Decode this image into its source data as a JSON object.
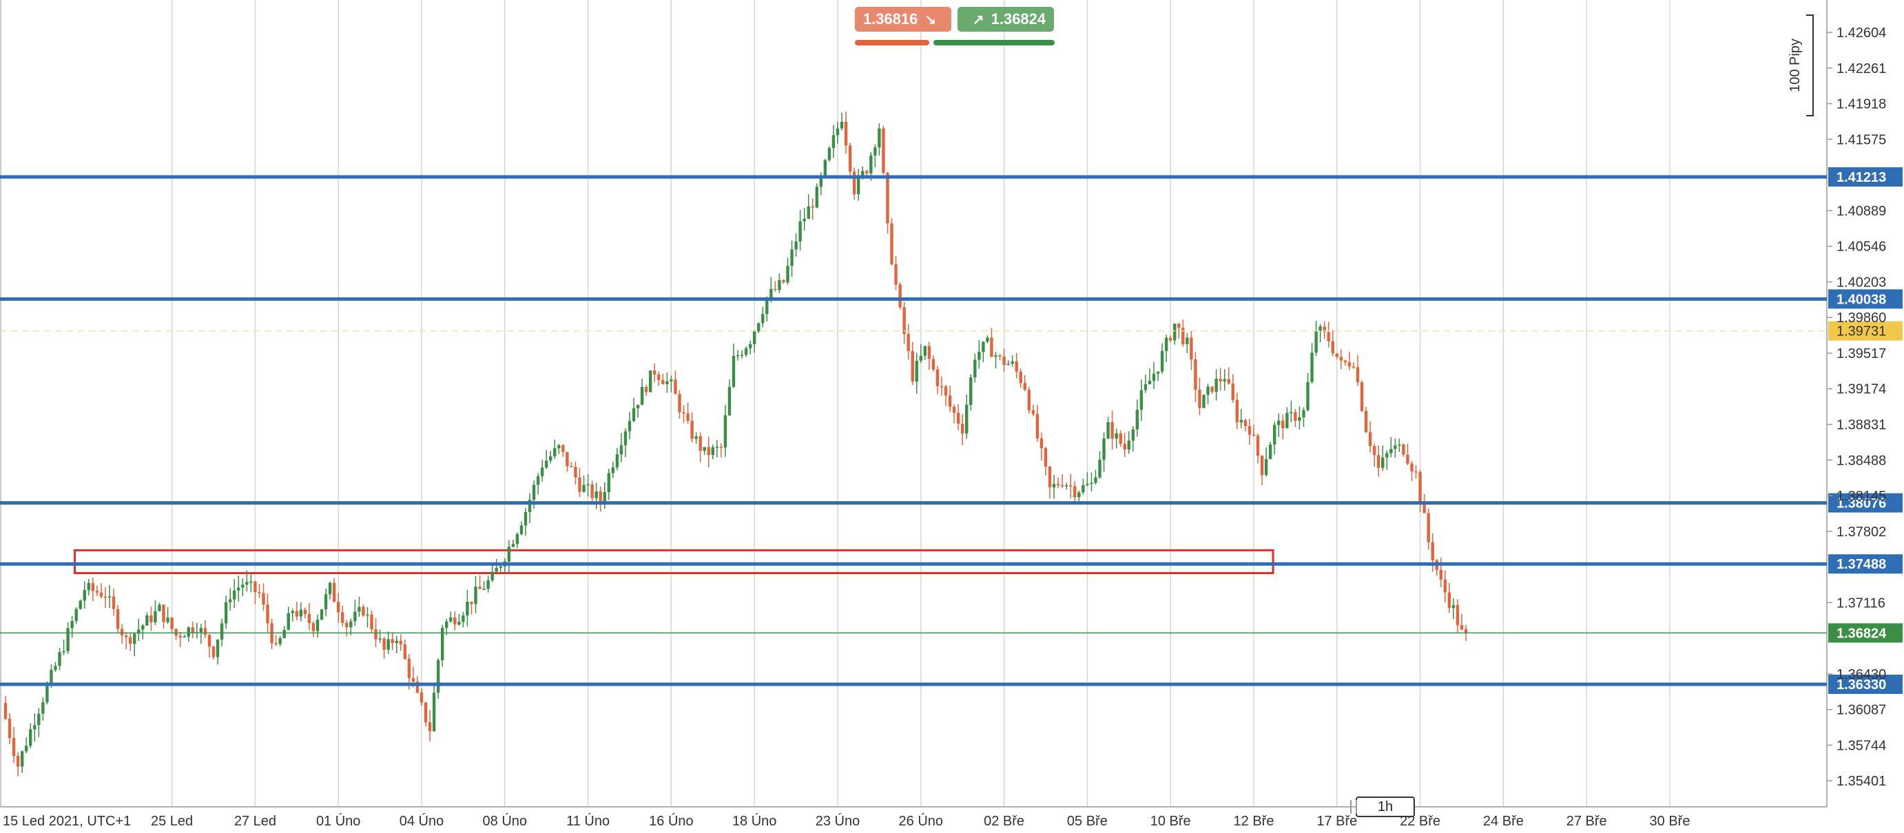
{
  "trade_panel": {
    "sell_price": "1.36816",
    "buy_price": "1.36824",
    "sell_color": "#e8886d",
    "buy_color": "#6aaa6e"
  },
  "timeframe": "1h",
  "colors": {
    "level": "#2f6db5",
    "up": "#3a8e46",
    "down": "#e0653c",
    "zone": "#d8312b",
    "current": "#3a8e46",
    "bid_tag": "#f0c94a"
  },
  "chart_data": {
    "type": "candlestick",
    "title": "",
    "xlabel": "",
    "ylabel": "",
    "ylim": [
      1.3515,
      1.429
    ],
    "y_ticks": [
      "1.35401",
      "1.35744",
      "1.36087",
      "1.36430",
      "1.37116",
      "1.37802",
      "1.38145",
      "1.38488",
      "1.38831",
      "1.39174",
      "1.39517",
      "1.39860",
      "1.40203",
      "1.40546",
      "1.40889",
      "1.41575",
      "1.41918",
      "1.42261",
      "1.42604"
    ],
    "x_labels": [
      {
        "label": "15 Led 2021, UTC+1",
        "idx": 0
      },
      {
        "label": "25 Led",
        "idx": 40
      },
      {
        "label": "27 Led",
        "idx": 60
      },
      {
        "label": "01 Úno",
        "idx": 80
      },
      {
        "label": "04 Úno",
        "idx": 100
      },
      {
        "label": "08 Úno",
        "idx": 120
      },
      {
        "label": "11 Úno",
        "idx": 140
      },
      {
        "label": "16 Úno",
        "idx": 160
      },
      {
        "label": "18 Úno",
        "idx": 180
      },
      {
        "label": "23 Úno",
        "idx": 200
      },
      {
        "label": "26 Úno",
        "idx": 220
      },
      {
        "label": "02 Bře",
        "idx": 240
      },
      {
        "label": "05 Bře",
        "idx": 260
      },
      {
        "label": "10 Bře",
        "idx": 280
      },
      {
        "label": "12 Bře",
        "idx": 300
      },
      {
        "label": "17 Bře",
        "idx": 320
      },
      {
        "label": "22 Bře",
        "idx": 340
      },
      {
        "label": "24 Bře",
        "idx": 360
      },
      {
        "label": "27 Bře",
        "idx": 380
      },
      {
        "label": "30 Bře",
        "idx": 400
      }
    ],
    "horizontal_levels": [
      "1.41213",
      "1.40038",
      "1.38076",
      "1.37488",
      "1.36330"
    ],
    "bid_price_tag": "1.39731",
    "current_price_tag": "1.36824",
    "range_marker_label": "100 Pipy",
    "zone": {
      "from_idx": 15,
      "to_idx": 303,
      "top": 1.3762,
      "bottom": 1.374
    },
    "anchors": [
      [
        0,
        1.3615
      ],
      [
        4,
        1.3555
      ],
      [
        8,
        1.36
      ],
      [
        14,
        1.366
      ],
      [
        20,
        1.3725
      ],
      [
        25,
        1.372
      ],
      [
        30,
        1.3675
      ],
      [
        34,
        1.369
      ],
      [
        38,
        1.3705
      ],
      [
        42,
        1.368
      ],
      [
        47,
        1.369
      ],
      [
        51,
        1.3665
      ],
      [
        55,
        1.372
      ],
      [
        58,
        1.373
      ],
      [
        62,
        1.372
      ],
      [
        66,
        1.3665
      ],
      [
        70,
        1.3705
      ],
      [
        75,
        1.369
      ],
      [
        79,
        1.3725
      ],
      [
        83,
        1.369
      ],
      [
        87,
        1.3705
      ],
      [
        92,
        1.3665
      ],
      [
        95,
        1.368
      ],
      [
        100,
        1.362
      ],
      [
        103,
        1.359
      ],
      [
        106,
        1.369
      ],
      [
        110,
        1.37
      ],
      [
        114,
        1.372
      ],
      [
        118,
        1.3735
      ],
      [
        122,
        1.3765
      ],
      [
        126,
        1.38
      ],
      [
        130,
        1.3845
      ],
      [
        134,
        1.386
      ],
      [
        139,
        1.3825
      ],
      [
        144,
        1.381
      ],
      [
        148,
        1.386
      ],
      [
        152,
        1.39
      ],
      [
        157,
        1.3935
      ],
      [
        161,
        1.392
      ],
      [
        165,
        1.388
      ],
      [
        169,
        1.3855
      ],
      [
        173,
        1.386
      ],
      [
        176,
        1.3945
      ],
      [
        180,
        1.3965
      ],
      [
        184,
        1.4005
      ],
      [
        188,
        1.402
      ],
      [
        192,
        1.4075
      ],
      [
        196,
        1.4105
      ],
      [
        199,
        1.4145
      ],
      [
        202,
        1.418
      ],
      [
        205,
        1.411
      ],
      [
        208,
        1.413
      ],
      [
        211,
        1.417
      ],
      [
        213,
        1.407
      ],
      [
        216,
        1.399
      ],
      [
        219,
        1.393
      ],
      [
        222,
        1.3955
      ],
      [
        225,
        1.3925
      ],
      [
        228,
        1.39
      ],
      [
        231,
        1.388
      ],
      [
        234,
        1.395
      ],
      [
        237,
        1.396
      ],
      [
        240,
        1.3945
      ],
      [
        243,
        1.394
      ],
      [
        246,
        1.392
      ],
      [
        249,
        1.387
      ],
      [
        252,
        1.382
      ],
      [
        255,
        1.383
      ],
      [
        258,
        1.382
      ],
      [
        262,
        1.3825
      ],
      [
        266,
        1.388
      ],
      [
        270,
        1.386
      ],
      [
        274,
        1.391
      ],
      [
        278,
        1.394
      ],
      [
        282,
        1.398
      ],
      [
        285,
        1.396
      ],
      [
        288,
        1.39
      ],
      [
        291,
        1.392
      ],
      [
        294,
        1.393
      ],
      [
        297,
        1.389
      ],
      [
        300,
        1.388
      ],
      [
        303,
        1.384
      ],
      [
        306,
        1.388
      ],
      [
        310,
        1.389
      ],
      [
        313,
        1.3895
      ],
      [
        316,
        1.3975
      ],
      [
        319,
        1.3965
      ],
      [
        322,
        1.394
      ],
      [
        325,
        1.3945
      ],
      [
        328,
        1.388
      ],
      [
        331,
        1.384
      ],
      [
        334,
        1.386
      ],
      [
        337,
        1.386
      ],
      [
        340,
        1.3835
      ],
      [
        343,
        1.377
      ],
      [
        346,
        1.373
      ],
      [
        349,
        1.3705
      ],
      [
        351,
        1.3682
      ]
    ]
  }
}
